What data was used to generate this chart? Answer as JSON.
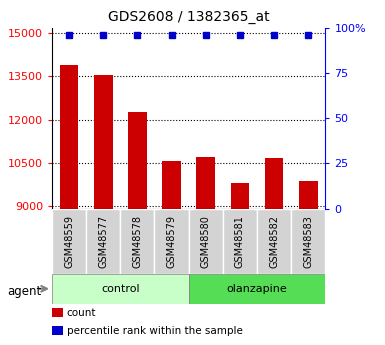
{
  "title": "GDS2608 / 1382365_at",
  "samples": [
    "GSM48559",
    "GSM48577",
    "GSM48578",
    "GSM48579",
    "GSM48580",
    "GSM48581",
    "GSM48582",
    "GSM48583"
  ],
  "counts": [
    13900,
    13550,
    12250,
    10550,
    10700,
    9800,
    10650,
    9850
  ],
  "percentile_ranks": [
    100,
    100,
    100,
    100,
    100,
    100,
    100,
    100
  ],
  "groups": [
    {
      "label": "control",
      "start": 0,
      "end": 4,
      "color": "#c8ffc8"
    },
    {
      "label": "olanzapine",
      "start": 4,
      "end": 8,
      "color": "#55dd55"
    }
  ],
  "group_label": "agent",
  "ylim_left": [
    8900,
    15200
  ],
  "ylim_right": [
    0,
    100
  ],
  "yticks_left": [
    9000,
    10500,
    12000,
    13500,
    15000
  ],
  "yticks_right": [
    0,
    25,
    50,
    75,
    100
  ],
  "bar_color": "#cc0000",
  "dot_color": "#0000cc",
  "bar_bg_color": "#d3d3d3",
  "legend_items": [
    {
      "label": "count",
      "color": "#cc0000"
    },
    {
      "label": "percentile rank within the sample",
      "color": "#0000cc"
    }
  ]
}
